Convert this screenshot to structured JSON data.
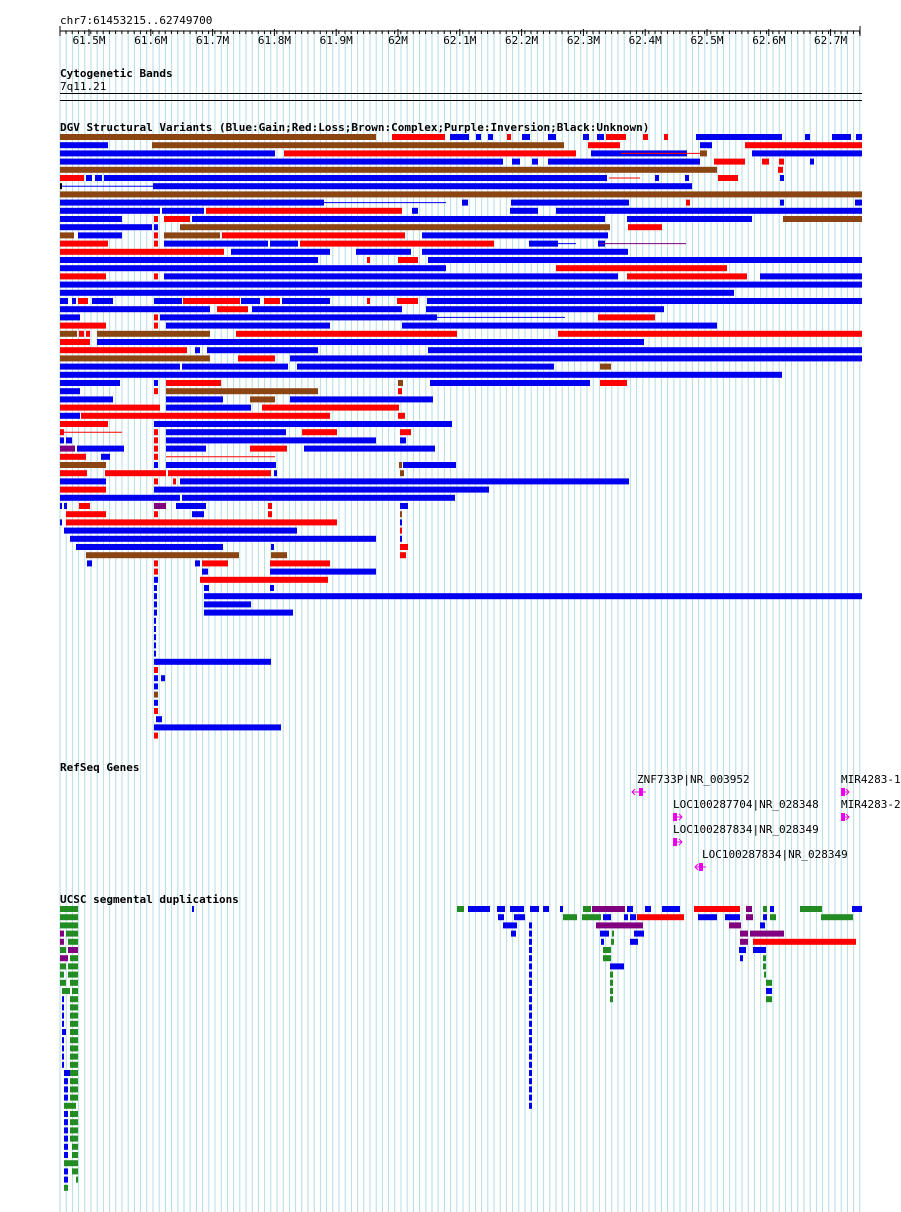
{
  "location": "chr7:61453215..62749700",
  "ruler": {
    "ticks": [
      "61.5M",
      "61.6M",
      "61.7M",
      "61.8M",
      "61.9M",
      "62M",
      "62.1M",
      "62.2M",
      "62.3M",
      "62.4M",
      "62.5M",
      "62.6M",
      "62.7M"
    ]
  },
  "tracks": {
    "cytoband": {
      "title": "Cytogenetic Bands",
      "band": "7q11.21"
    },
    "dgv": {
      "title": "DGV Structural Variants (Blue:Gain;Red:Loss;Brown:Complex;Purple:Inversion;Black:Unknown)"
    },
    "refseq": {
      "title": "RefSeq Genes",
      "genes": [
        {
          "label": "ZNF733P|NR_003952",
          "strand": "-"
        },
        {
          "label": "LOC100287704|NR_028348",
          "strand": "+"
        },
        {
          "label": "LOC100287834|NR_028349",
          "strand": "+"
        },
        {
          "label": "LOC100287834|NR_028349",
          "strand": "-"
        },
        {
          "label": "MIR4283-1",
          "strand": "+"
        },
        {
          "label": "MIR4283-2",
          "strand": "+"
        }
      ]
    },
    "segdup": {
      "title": "UCSC segmental duplications"
    }
  },
  "colors": {
    "gain": "#0000ee",
    "loss": "#ff0000",
    "complex": "#8b4513",
    "inversion": "#800080",
    "unknown": "#000000",
    "segdup_green": "#228b22",
    "refseq": "#ee00ee",
    "grid": "#b3dde6"
  }
}
